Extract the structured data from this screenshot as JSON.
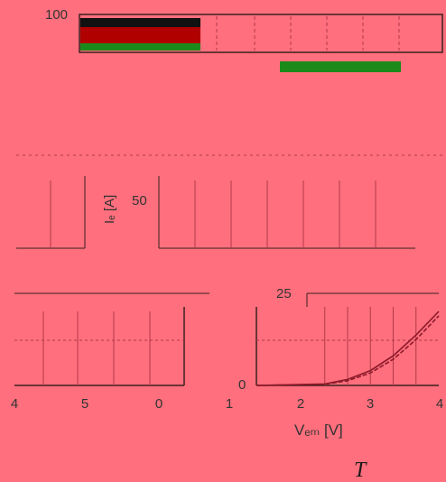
{
  "chart_data": {
    "type": "line",
    "title": "",
    "ylabel": "Iₑ [A]",
    "xlabel": "Vₑₘ [V]",
    "corner_label": "T",
    "ylim": [
      0,
      100
    ],
    "y_ticks": [
      {
        "value": 100,
        "label": "100"
      },
      {
        "value": 50,
        "label": "50"
      },
      {
        "value": 25,
        "label": "25"
      },
      {
        "value": 0,
        "label": "0"
      }
    ],
    "xlim": [
      0,
      4
    ],
    "x_ticks": [
      {
        "value": 0,
        "label": "0"
      },
      {
        "value": 1,
        "label": "1"
      },
      {
        "value": 2,
        "label": "2"
      },
      {
        "value": 3,
        "label": "3"
      },
      {
        "value": 4,
        "label": "4"
      }
    ],
    "left_x_ticks": [
      {
        "value": 4,
        "label": "4"
      },
      {
        "value": 5,
        "label": "5"
      }
    ],
    "grid": true,
    "series": [
      {
        "x": [
          0.0,
          1.5,
          2.0,
          2.5,
          3.0,
          3.5,
          4.0
        ],
        "values": [
          0,
          0.5,
          2.0,
          5.0,
          10.0,
          17.0,
          25.0
        ]
      },
      {
        "x": [
          0.0,
          1.5,
          2.0,
          2.5,
          3.0,
          3.5,
          4.0
        ],
        "values": [
          0,
          0.4,
          1.6,
          4.2,
          8.8,
          15.5,
          23.5
        ]
      }
    ],
    "colors": {
      "background": "#ff6f7d",
      "axis": "#3a2020",
      "grid": "#b33a4a",
      "curve": "#8b1a2a",
      "band_black": "#111111",
      "band_red": "#b00000",
      "band_green": "#1b8a1b"
    }
  }
}
